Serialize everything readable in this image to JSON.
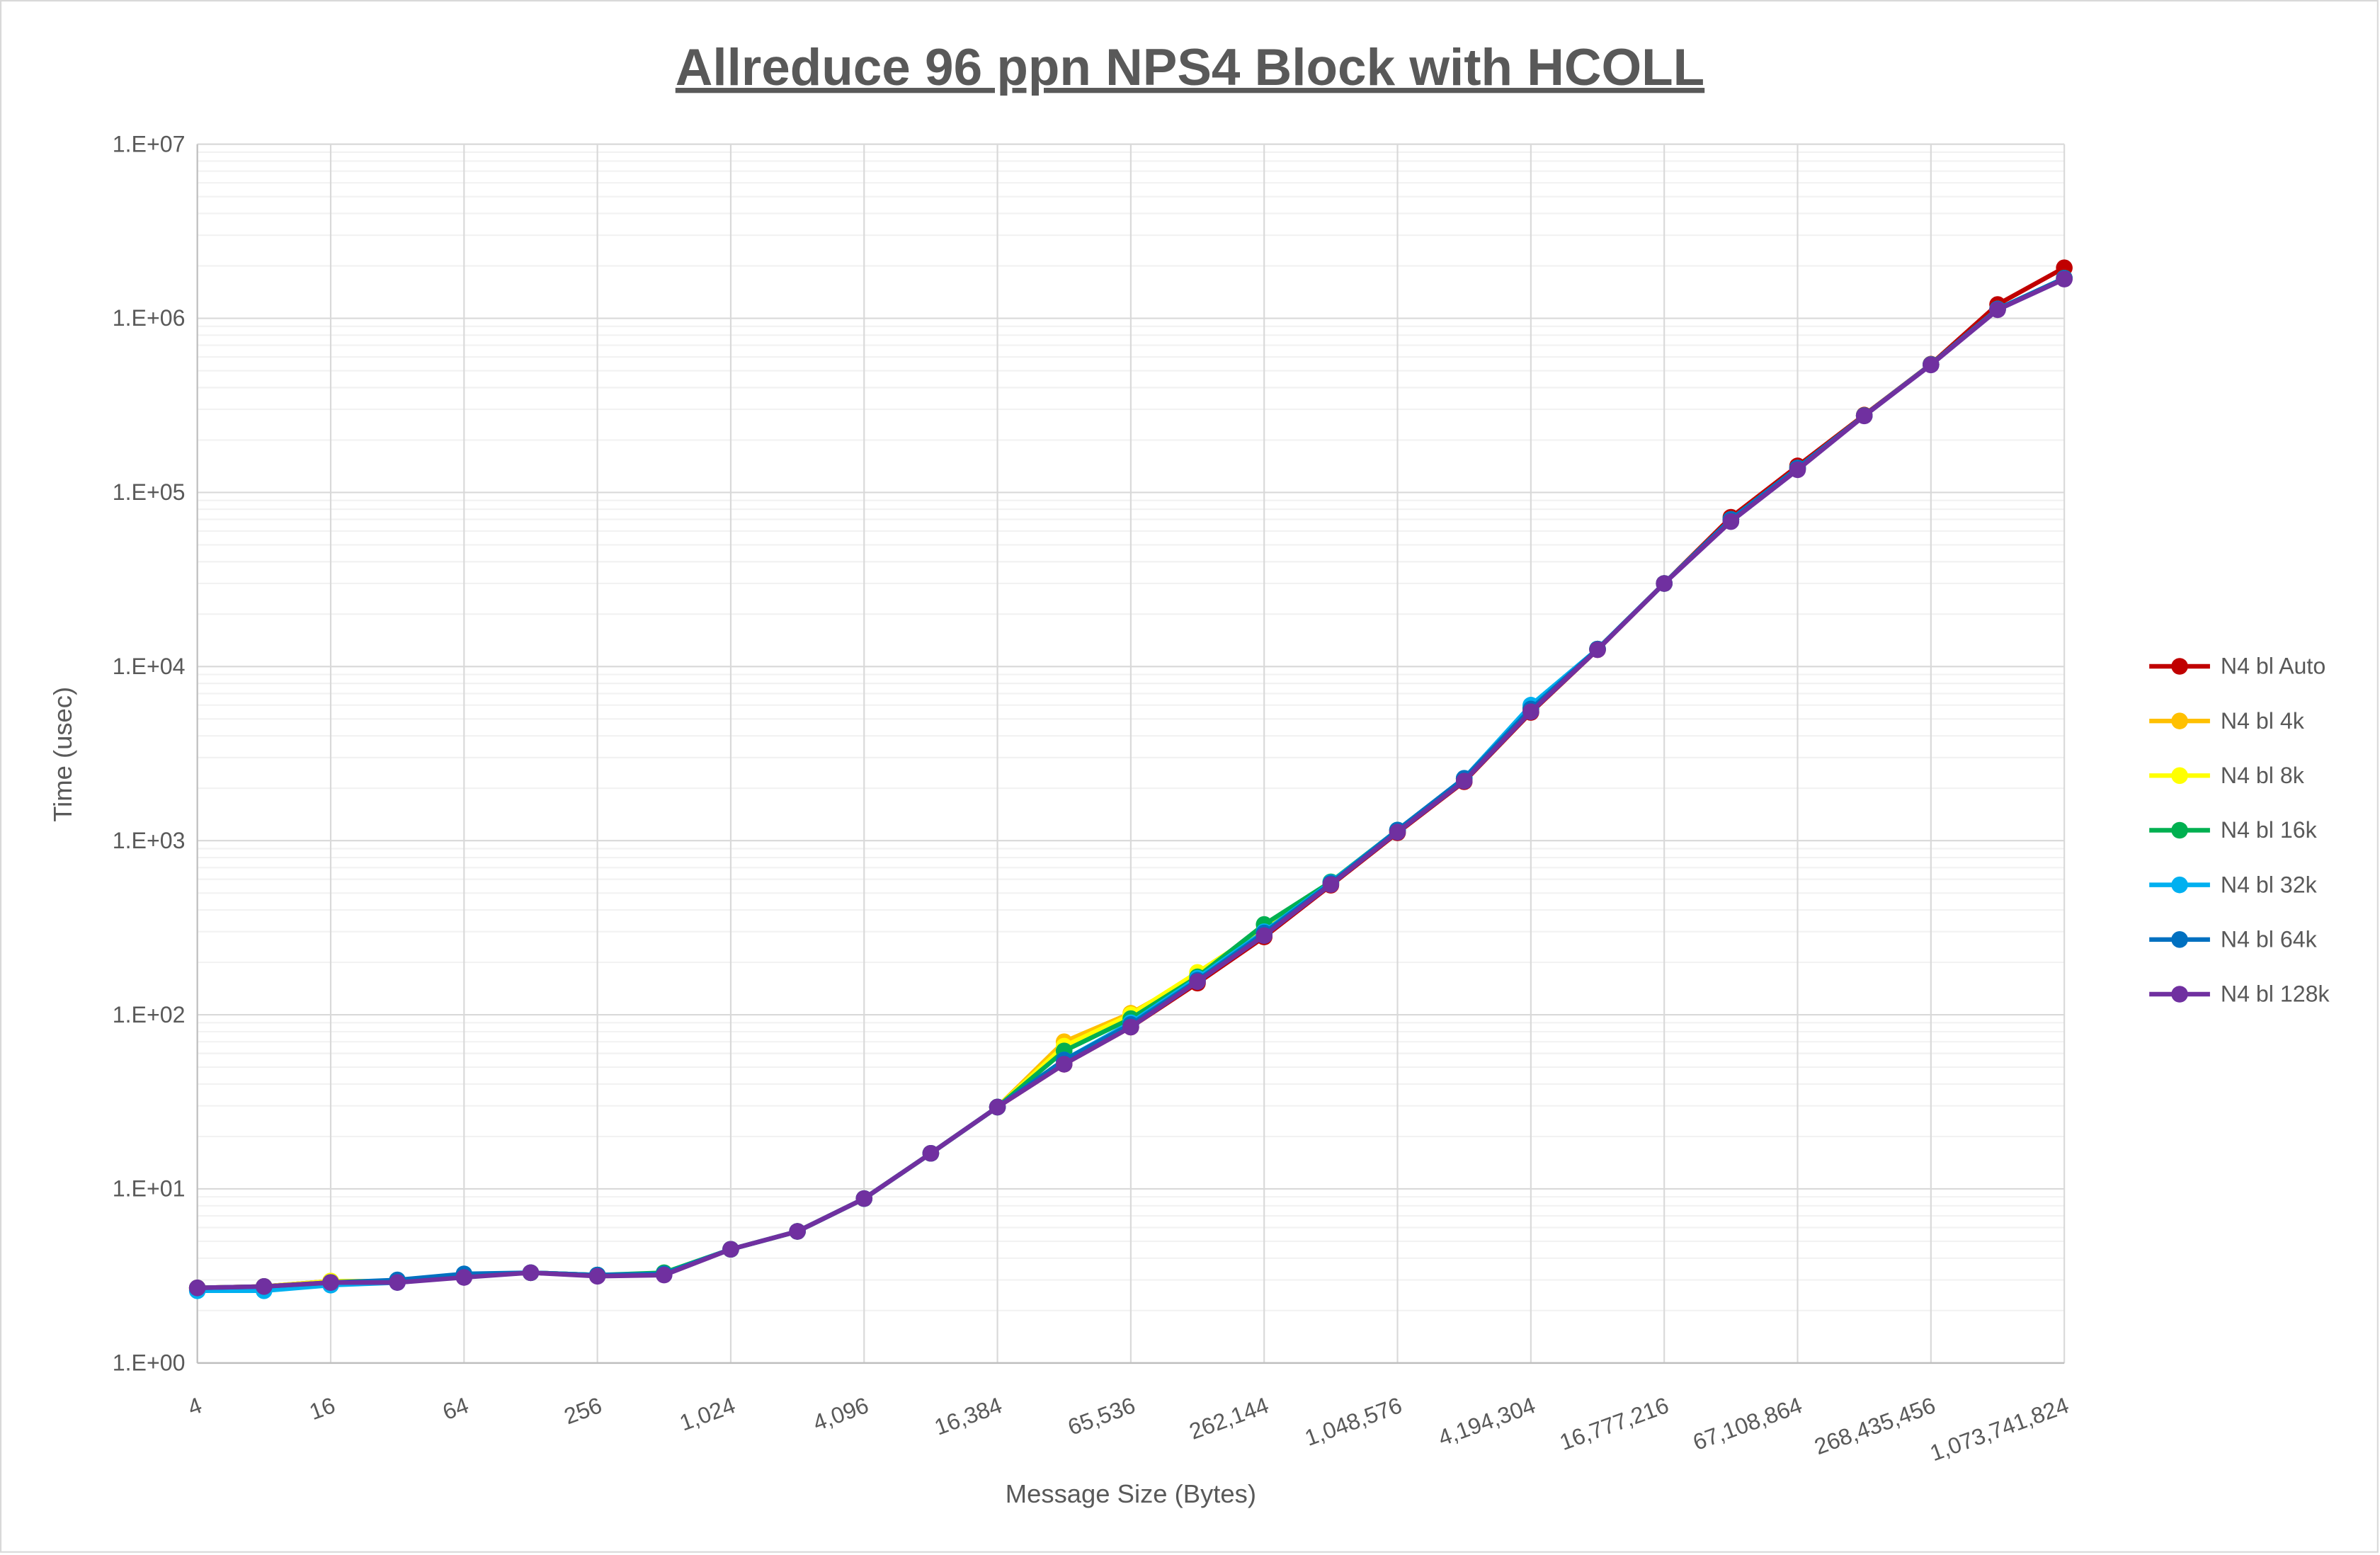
{
  "chart_data": {
    "type": "line",
    "title": "Allreduce 96 ppn NPS4 Block with HCOLL",
    "xlabel": "Message Size (Bytes)",
    "ylabel": "Time (usec)",
    "x_scale": "log2",
    "y_scale": "log10",
    "ylim": [
      1,
      10000000
    ],
    "grid": true,
    "legend_position": "right",
    "x": [
      4,
      8,
      16,
      32,
      64,
      128,
      256,
      512,
      1024,
      2048,
      4096,
      8192,
      16384,
      32768,
      65536,
      131072,
      262144,
      524288,
      1048576,
      2097152,
      4194304,
      8388608,
      16777216,
      33554432,
      67108864,
      134217728,
      268435456,
      536870912,
      1073741824
    ],
    "x_tick_labels": [
      "4",
      "16",
      "64",
      "256",
      "1,024",
      "4,096",
      "16,384",
      "65,536",
      "262,144",
      "1,048,576",
      "4,194,304",
      "16,777,216",
      "67,108,864",
      "268,435,456",
      "1,073,741,824"
    ],
    "y_tick_labels": [
      "1.E+00",
      "1.E+01",
      "1.E+02",
      "1.E+03",
      "1.E+04",
      "1.E+05",
      "1.E+06",
      "1.E+07"
    ],
    "series": [
      {
        "name": "N4 bl Auto",
        "color": "#C00000",
        "values": [
          2.7,
          2.75,
          2.95,
          2.95,
          3.15,
          3.3,
          3.2,
          3.25,
          4.5,
          5.7,
          8.8,
          16,
          29.5,
          52,
          85,
          152,
          280,
          555,
          1110,
          2180,
          5450,
          12500,
          30000,
          72000,
          142000,
          278000,
          545000,
          1200000,
          1950000
        ]
      },
      {
        "name": "N4 bl 4k",
        "color": "#FFC000",
        "values": [
          2.7,
          2.75,
          2.95,
          2.95,
          3.15,
          3.3,
          3.2,
          3.25,
          4.5,
          5.7,
          8.8,
          16,
          29.5,
          70,
          102,
          168,
          300,
          570,
          1130,
          2250,
          5600,
          12600,
          30000,
          70000,
          138000,
          276000,
          542000,
          1130000,
          1700000
        ]
      },
      {
        "name": "N4 bl 8k",
        "color": "#FFFF00",
        "values": [
          2.7,
          2.75,
          2.95,
          2.95,
          3.15,
          3.3,
          3.2,
          3.25,
          4.5,
          5.7,
          8.8,
          16,
          29.5,
          66,
          100,
          175,
          310,
          575,
          1140,
          2260,
          5700,
          12600,
          30000,
          70000,
          138000,
          276000,
          542000,
          1130000,
          1700000
        ]
      },
      {
        "name": "N4 bl 16k",
        "color": "#00B050",
        "values": [
          2.65,
          2.7,
          2.9,
          2.95,
          3.2,
          3.3,
          3.2,
          3.3,
          4.5,
          5.7,
          8.8,
          16,
          29.5,
          62,
          95,
          165,
          330,
          580,
          1150,
          2270,
          5800,
          12600,
          30000,
          70000,
          138000,
          276000,
          542000,
          1130000,
          1700000
        ]
      },
      {
        "name": "N4 bl 32k",
        "color": "#00B0F0",
        "values": [
          2.6,
          2.6,
          2.8,
          2.9,
          3.15,
          3.3,
          3.2,
          3.25,
          4.5,
          5.7,
          8.8,
          16,
          29.5,
          55,
          90,
          162,
          300,
          575,
          1150,
          2280,
          6000,
          12600,
          30000,
          70000,
          138000,
          276000,
          542000,
          1130000,
          1700000
        ]
      },
      {
        "name": "N4 bl 64k",
        "color": "#0070C0",
        "values": [
          2.7,
          2.75,
          2.9,
          3.0,
          3.25,
          3.3,
          3.2,
          3.25,
          4.5,
          5.7,
          8.8,
          16,
          29.5,
          55,
          88,
          158,
          295,
          570,
          1150,
          2280,
          5700,
          12600,
          30000,
          70000,
          138000,
          276000,
          542000,
          1130000,
          1700000
        ]
      },
      {
        "name": "N4 bl 128k",
        "color": "#7030A0",
        "values": [
          2.7,
          2.75,
          2.9,
          2.9,
          3.1,
          3.3,
          3.15,
          3.2,
          4.5,
          5.7,
          8.8,
          16,
          29.5,
          52,
          85,
          155,
          285,
          560,
          1120,
          2200,
          5500,
          12500,
          30000,
          68000,
          135000,
          275000,
          540000,
          1120000,
          1680000
        ]
      }
    ]
  }
}
